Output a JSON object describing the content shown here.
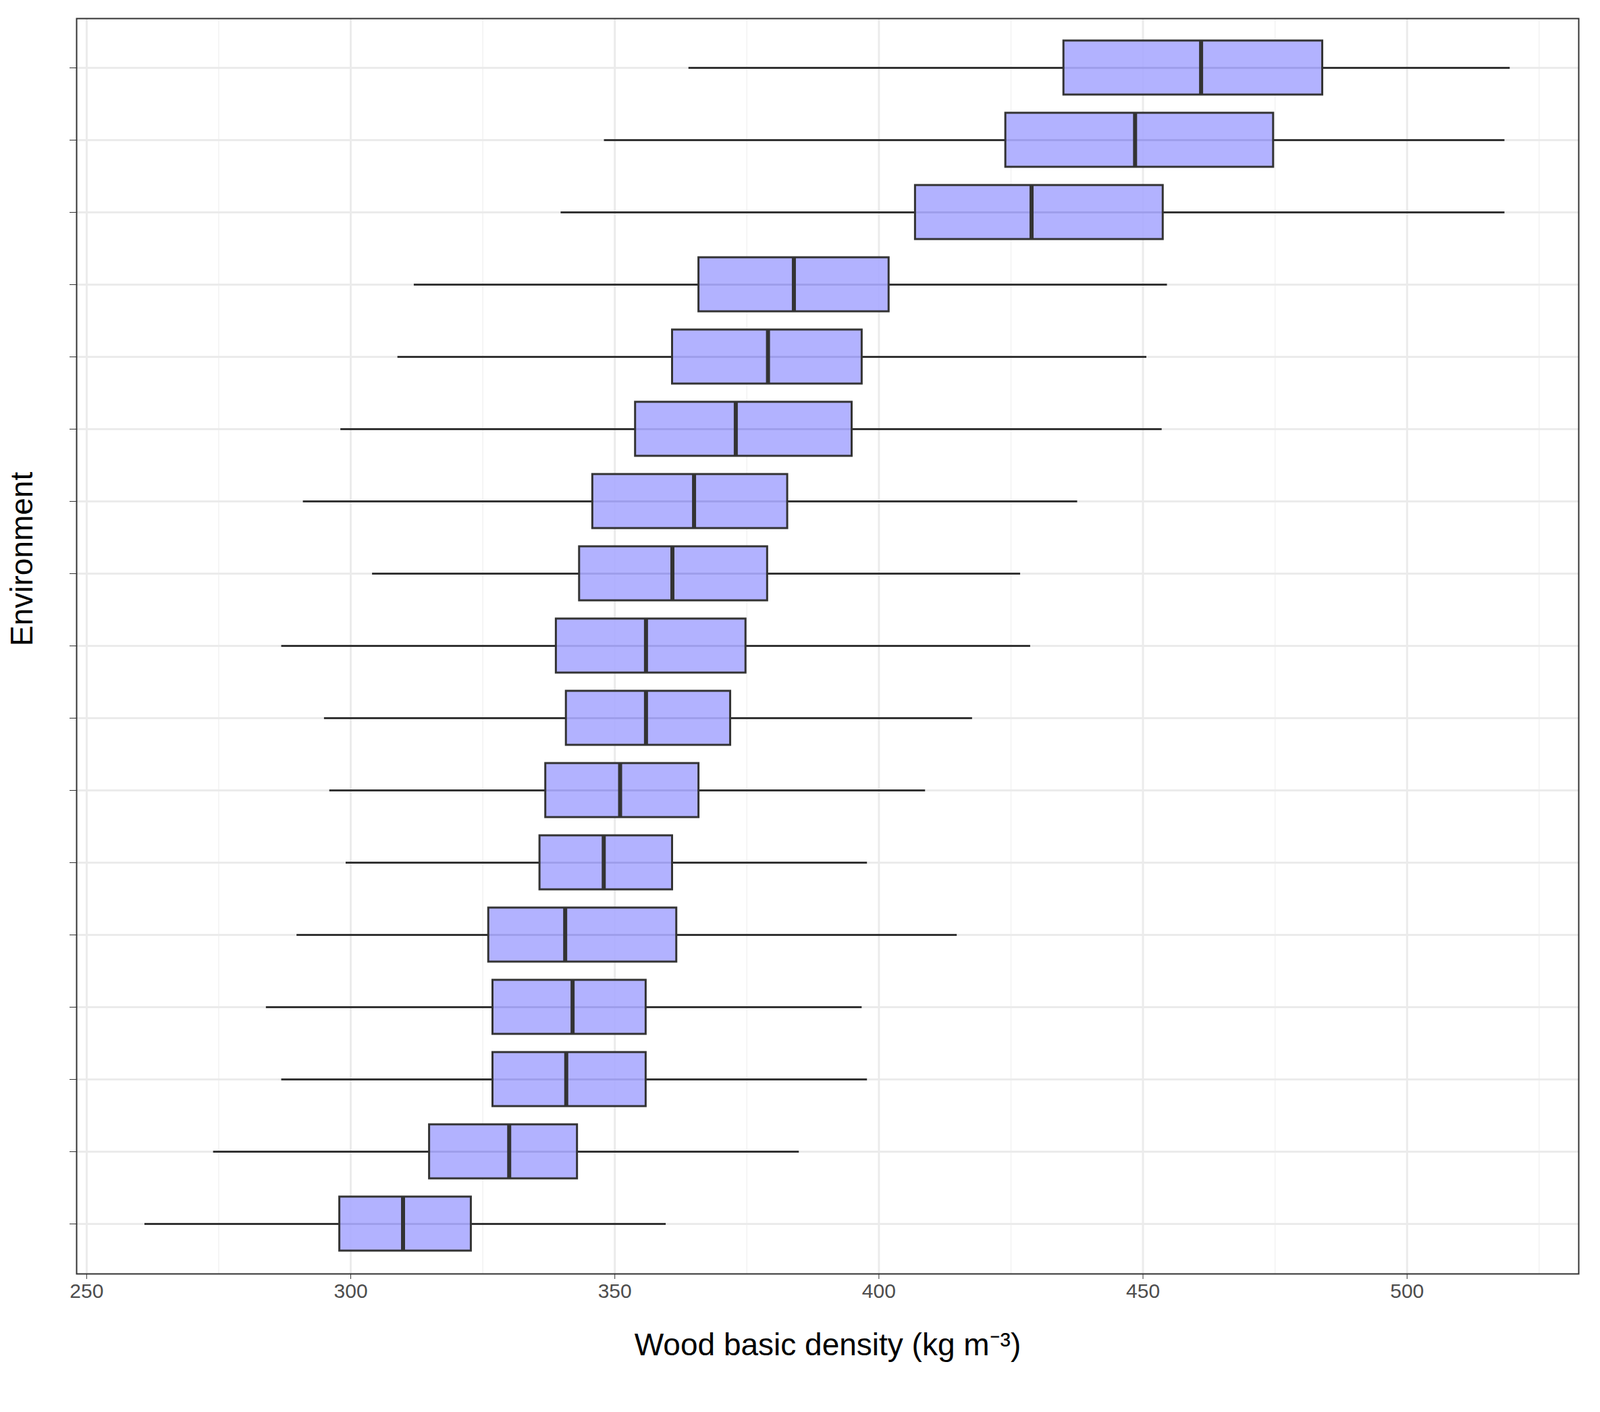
{
  "chart_data": {
    "type": "boxplot",
    "orientation": "horizontal",
    "x_label": "Wood basic density (kg m⁻³)",
    "y_label": "Environment",
    "categories": [
      null,
      null,
      null,
      null,
      null,
      null,
      null,
      null,
      null,
      null,
      null,
      null,
      null,
      null,
      null,
      null,
      null
    ],
    "whisker_low": [
      364,
      348,
      339.8,
      312,
      308.9,
      298.1,
      291,
      304.1,
      286.9,
      295,
      296,
      299.1,
      289.8,
      284,
      286.9,
      274,
      261
    ],
    "q1": [
      435,
      424,
      406.9,
      365.9,
      360.9,
      353.9,
      345.8,
      343.3,
      338.9,
      340.8,
      336.9,
      335.8,
      326.1,
      326.9,
      326.9,
      314.9,
      297.9
    ],
    "median": [
      461,
      448.5,
      428.9,
      383.9,
      379,
      372.9,
      365,
      360.9,
      355.9,
      355.9,
      351,
      347.9,
      340.6,
      342,
      340.8,
      330,
      309.9
    ],
    "q3": [
      484,
      474.7,
      453.8,
      401.9,
      396.8,
      394.9,
      382.7,
      378.9,
      374.8,
      371.9,
      365.9,
      360.9,
      361.7,
      355.9,
      355.9,
      342.9,
      322.8
    ],
    "whisker_high": [
      519.5,
      518.5,
      518.5,
      454.6,
      450.7,
      453.6,
      437.6,
      426.8,
      428.7,
      417.7,
      408.8,
      397.8,
      414.8,
      396.8,
      397.8,
      384.9,
      359.7
    ],
    "color": "#aaaaff",
    "xlim": [
      248.1,
      532.5
    ],
    "xticks": [
      250,
      300,
      350,
      400,
      450,
      500
    ],
    "grid": true
  }
}
